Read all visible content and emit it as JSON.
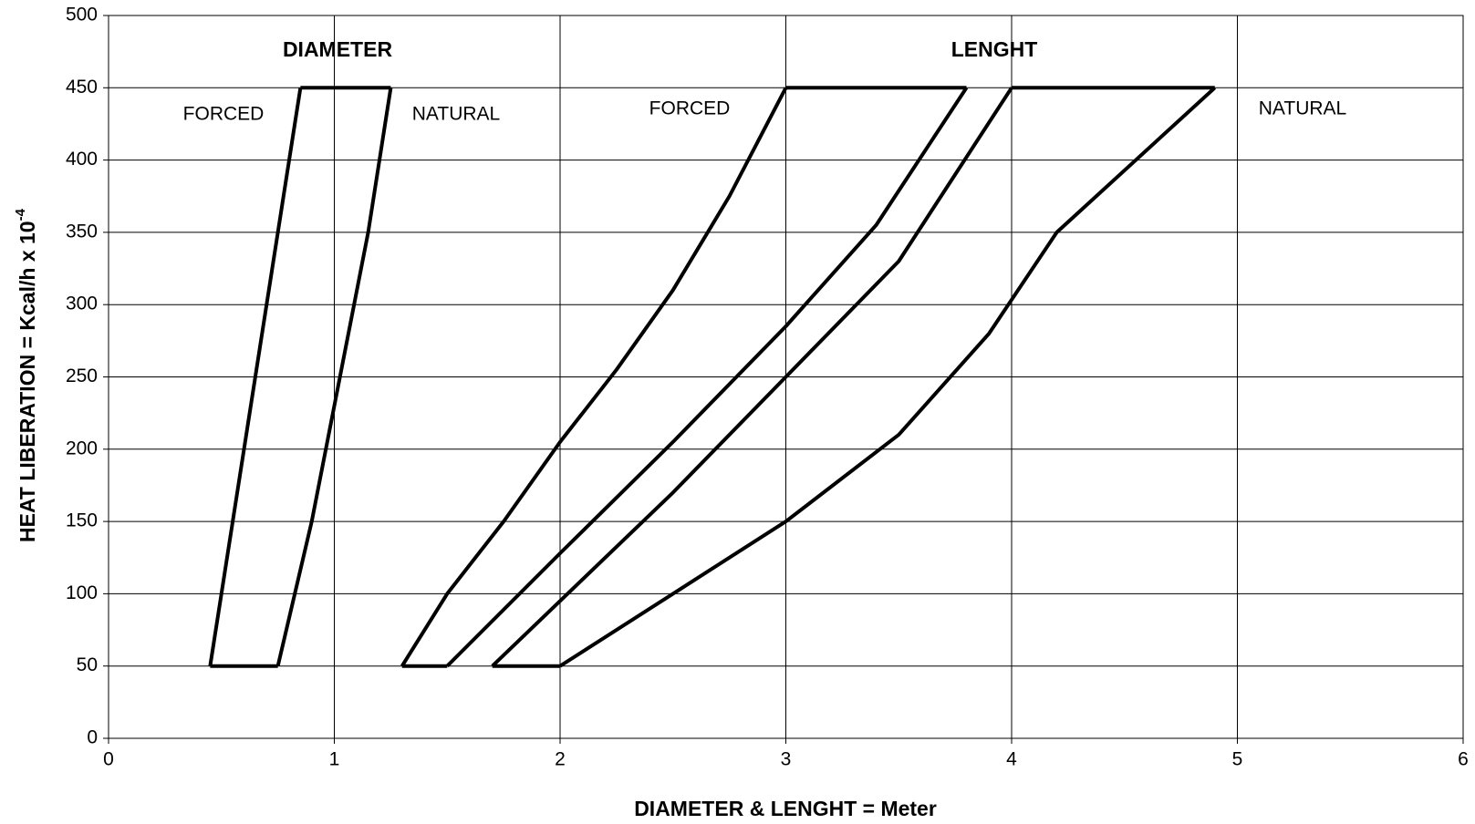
{
  "chart_data": {
    "type": "line",
    "x_label": "DIAMETER & LENGHT = Meter",
    "y_label": "HEAT LIBERATION = Kcal/h x 10",
    "y_label_sup": "-4",
    "annotations": [
      "DIAMETER",
      "LENGHT",
      "FORCED",
      "NATURAL",
      "FORCED",
      "NATURAL"
    ],
    "xlim": [
      0,
      6
    ],
    "xticks": [
      0,
      1,
      2,
      3,
      4,
      5,
      6
    ],
    "ylim": [
      0,
      500
    ],
    "yticks": [
      0,
      50,
      100,
      150,
      200,
      250,
      300,
      350,
      400,
      450,
      500
    ],
    "grid": true,
    "series": [
      {
        "color": "#000000",
        "x": [
          0.45,
          0.85
        ],
        "values": [
          50,
          450
        ]
      },
      {
        "color": "#000000",
        "x": [
          0.75,
          0.9,
          1.05,
          1.15,
          1.25
        ],
        "values": [
          50,
          150,
          270,
          350,
          450
        ]
      },
      {
        "color": "#000000",
        "x": [
          0.85,
          1.25
        ],
        "values": [
          450,
          450
        ]
      },
      {
        "color": "#000000",
        "x": [
          0.45,
          0.75
        ],
        "values": [
          50,
          50
        ]
      },
      {
        "color": "#000000",
        "x": [
          1.3,
          1.5,
          1.75,
          2.0,
          2.25,
          2.5,
          2.75,
          3.0
        ],
        "values": [
          50,
          100,
          150,
          205,
          255,
          310,
          375,
          450
        ]
      },
      {
        "color": "#000000",
        "x": [
          1.5,
          2.0,
          2.5,
          3.0,
          3.4,
          3.8
        ],
        "values": [
          50,
          128,
          205,
          285,
          355,
          450
        ]
      },
      {
        "color": "#000000",
        "x": [
          1.7,
          2.0,
          2.5,
          3.0,
          3.5,
          4.0
        ],
        "values": [
          50,
          95,
          170,
          250,
          330,
          450
        ]
      },
      {
        "color": "#000000",
        "x": [
          2.0,
          2.5,
          3.0,
          3.5,
          3.9,
          4.2,
          4.9
        ],
        "values": [
          50,
          100,
          150,
          210,
          280,
          350,
          450
        ]
      },
      {
        "color": "#000000",
        "x": [
          3.0,
          3.8
        ],
        "values": [
          450,
          450
        ]
      },
      {
        "color": "#000000",
        "x": [
          4.0,
          4.9
        ],
        "values": [
          450,
          450
        ]
      },
      {
        "color": "#000000",
        "x": [
          1.3,
          1.5
        ],
        "values": [
          50,
          50
        ]
      },
      {
        "color": "#000000",
        "x": [
          1.7,
          2.0
        ],
        "values": [
          50,
          50
        ]
      }
    ]
  }
}
